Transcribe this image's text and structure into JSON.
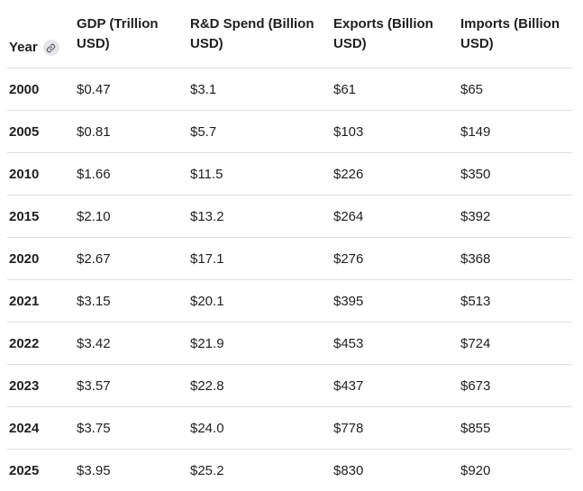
{
  "table": {
    "headers": [
      "Year",
      "GDP (Trillion USD)",
      "R&D Spend (Billion USD)",
      "Exports (Billion USD)",
      "Imports (Billion USD)"
    ],
    "header_lines": [
      [
        "Year"
      ],
      [
        "GDP (Trillion",
        "USD)"
      ],
      [
        "R&D Spend (Billion",
        "USD)"
      ],
      [
        "Exports (Billion",
        "USD)"
      ],
      [
        "Imports (Billion",
        "USD)"
      ]
    ],
    "year_header_icon": "link-icon",
    "rows": [
      [
        "2000",
        "$0.47",
        "$3.1",
        "$61",
        "$65"
      ],
      [
        "2005",
        "$0.81",
        "$5.7",
        "$103",
        "$149"
      ],
      [
        "2010",
        "$1.66",
        "$11.5",
        "$226",
        "$350"
      ],
      [
        "2015",
        "$2.10",
        "$13.2",
        "$264",
        "$392"
      ],
      [
        "2020",
        "$2.67",
        "$17.1",
        "$276",
        "$368"
      ],
      [
        "2021",
        "$3.15",
        "$20.1",
        "$395",
        "$513"
      ],
      [
        "2022",
        "$3.42",
        "$21.9",
        "$453",
        "$724"
      ],
      [
        "2023",
        "$3.57",
        "$22.8",
        "$437",
        "$673"
      ],
      [
        "2024",
        "$3.75",
        "$24.0",
        "$778",
        "$855"
      ],
      [
        "2025",
        "$3.95",
        "$25.2",
        "$830",
        "$920"
      ]
    ]
  }
}
